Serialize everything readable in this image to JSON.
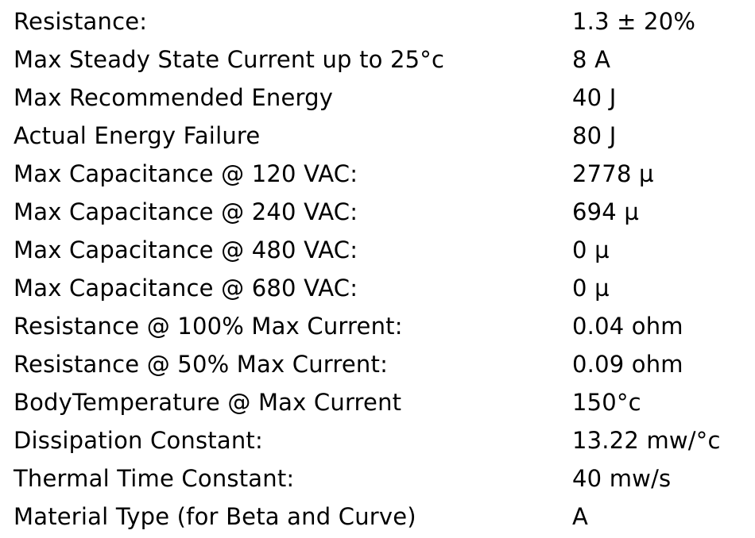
{
  "specs": [
    {
      "label": "Resistance:",
      "value": "1.3 ± 20%"
    },
    {
      "label": "Max Steady State Current up to 25°c",
      "value": "8 A"
    },
    {
      "label": "Max Recommended Energy",
      "value": "40 J"
    },
    {
      "label": "Actual Energy Failure",
      "value": "80 J"
    },
    {
      "label": "Max Capacitance @ 120 VAC:",
      "value": "2778 µ"
    },
    {
      "label": "Max Capacitance @ 240 VAC:",
      "value": "694 µ"
    },
    {
      "label": "Max Capacitance @ 480 VAC:",
      "value": "0 µ"
    },
    {
      "label": "Max Capacitance @ 680 VAC:",
      "value": "0 µ"
    },
    {
      "label": "Resistance @ 100% Max Current:",
      "value": "0.04 ohm"
    },
    {
      "label": "Resistance @ 50% Max Current:",
      "value": "0.09 ohm"
    },
    {
      "label": "BodyTemperature @ Max Current",
      "value": "150°c"
    },
    {
      "label": "Dissipation Constant:",
      "value": "13.22 mw/°c"
    },
    {
      "label": "Thermal Time Constant:",
      "value": "40 mw/s"
    },
    {
      "label": "Material Type (for Beta and Curve)",
      "value": "A"
    }
  ]
}
